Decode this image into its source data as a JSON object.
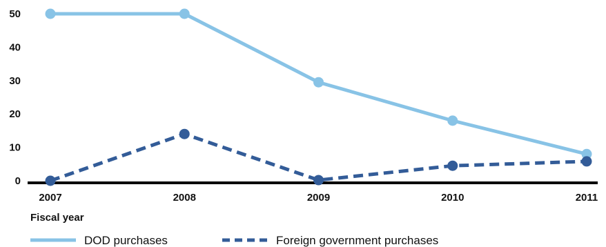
{
  "chart_data": {
    "type": "line",
    "categories": [
      "2007",
      "2008",
      "2009",
      "2010",
      "2011"
    ],
    "series": [
      {
        "name": "DOD purchases",
        "values": [
          50,
          50,
          29.5,
          18,
          8
        ],
        "color": "#88c3e6",
        "style": "solid",
        "marker": "circle"
      },
      {
        "name": "Foreign government purchases",
        "values": [
          0,
          14,
          0.2,
          4.5,
          5.8
        ],
        "color": "#335c98",
        "style": "dashed",
        "marker": "circle"
      }
    ],
    "title": "",
    "xlabel": "Fiscal year",
    "ylabel": "",
    "ylim": [
      0,
      50
    ],
    "yticks": [
      "0",
      "10",
      "20",
      "30",
      "40",
      "50"
    ],
    "grid": false,
    "legend_position": "bottom-left"
  }
}
